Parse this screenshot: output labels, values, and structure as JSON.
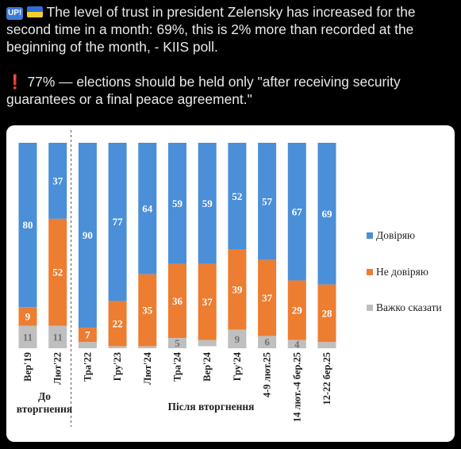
{
  "post": {
    "badge": "UP!",
    "flag_icon": "ukraine-flag-icon",
    "line1": "The level of trust in president Zelensky has increased for the second time in a month: 69%, this is 2% more than recorded at the beginning of the month, - KIIS poll.",
    "warning_icon": "red-exclamation-icon",
    "line2": "77% — elections should be held only \"after receiving security guarantees or a final peace agreement.\""
  },
  "chart_data": {
    "type": "bar",
    "stacked": true,
    "normalized_to": 100,
    "categories": [
      "Вер'19",
      "Лют'22",
      "Тра'22",
      "Гру'23",
      "Лют'24",
      "Тра'24",
      "Вер'24",
      "Гру'24",
      "4-9 лют.25",
      "14 лют.-4 бер.25",
      "12-22 бер.25"
    ],
    "series": [
      {
        "name": "Довіряю",
        "color": "#4a8fd8",
        "values": [
          80,
          37,
          90,
          77,
          64,
          59,
          59,
          52,
          57,
          67,
          69
        ]
      },
      {
        "name": "Не довіряю",
        "color": "#ed7d31",
        "values": [
          9,
          52,
          7,
          22,
          35,
          36,
          37,
          39,
          37,
          29,
          28
        ]
      },
      {
        "name": "Важко сказати",
        "color": "#bfbfbf",
        "values": [
          11,
          11,
          3,
          1,
          1,
          5,
          3,
          9,
          6,
          4,
          3
        ]
      }
    ],
    "groups": [
      {
        "label": "До вторгнення",
        "categories": [
          "Вер'19",
          "Лют'22"
        ]
      },
      {
        "label": "Після вторгнення",
        "categories": [
          "Тра'22",
          "Гру'23",
          "Лют'24",
          "Тра'24",
          "Вер'24",
          "Гру'24",
          "4-9 лют.25",
          "14 лют.-4 бер.25",
          "12-22 бер.25"
        ]
      }
    ],
    "separator_after": "Лют'22",
    "legend_position": "right",
    "grid": false,
    "ylim": [
      0,
      100
    ]
  }
}
